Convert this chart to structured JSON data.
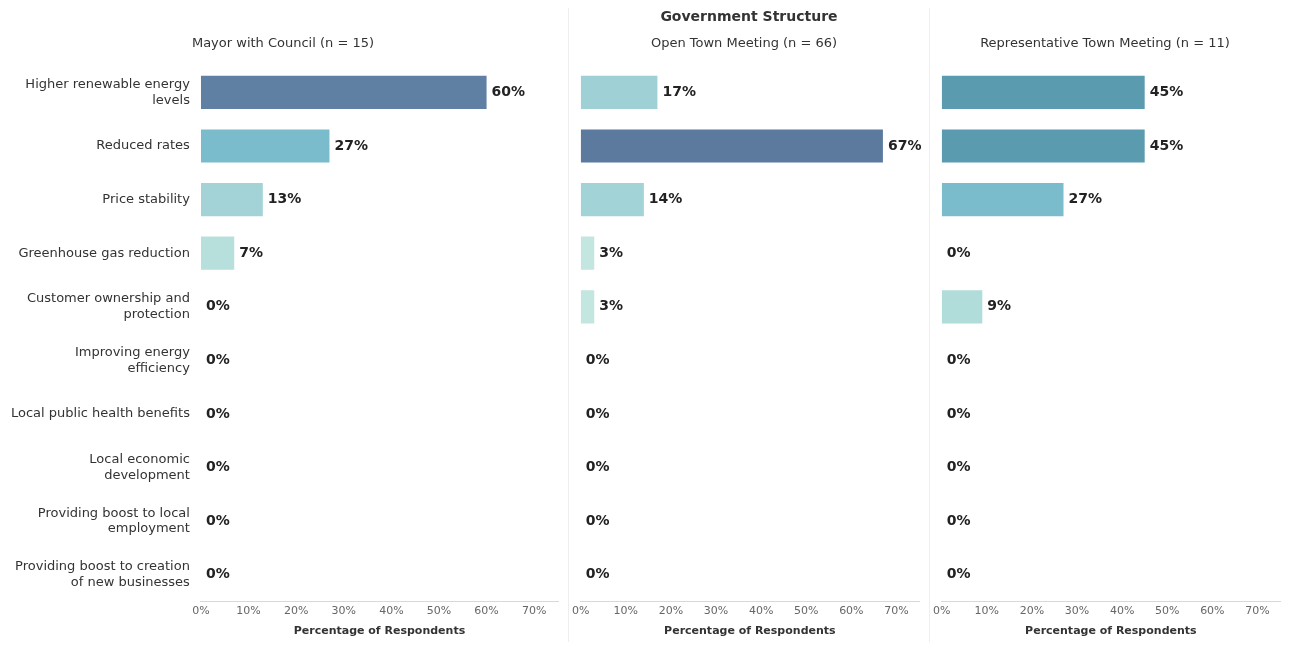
{
  "chart_data": [
    {
      "type": "bar",
      "orientation": "horizontal",
      "subtitle": "Mayor with Council (n = 15)",
      "xlabel": "Percentage of Respondents",
      "categories": [
        "Higher renewable energy levels",
        "Reduced rates",
        "Price stability",
        "Greenhouse gas reduction",
        "Customer ownership and protection",
        "Improving energy efficiency",
        "Local public health benefits",
        "Local economic development",
        "Providing boost to local employment",
        "Providing boost to creation of new businesses"
      ],
      "values": [
        60,
        27,
        13,
        7,
        0,
        0,
        0,
        0,
        0,
        0
      ],
      "value_labels": [
        "60%",
        "27%",
        "13%",
        "7%",
        "0%",
        "0%",
        "0%",
        "0%",
        "0%",
        "0%"
      ],
      "colors": [
        "#5f7fa3",
        "#7bbccc",
        "#a3d3d6",
        "#b7e0dc",
        "#c6e8e2",
        "#c6e8e2",
        "#c6e8e2",
        "#c6e8e2",
        "#c6e8e2",
        "#c6e8e2"
      ],
      "xlim": [
        0,
        75
      ],
      "xticks": [
        {
          "value": 0,
          "label": "0%"
        },
        {
          "value": 10,
          "label": "10%"
        },
        {
          "value": 20,
          "label": "20%"
        },
        {
          "value": 30,
          "label": "30%"
        },
        {
          "value": 40,
          "label": "40%"
        },
        {
          "value": 50,
          "label": "50%"
        },
        {
          "value": 60,
          "label": "60%"
        },
        {
          "value": 70,
          "label": "70%"
        }
      ],
      "grid": false
    },
    {
      "type": "bar",
      "orientation": "horizontal",
      "title": "Government Structure",
      "subtitle": "Open Town Meeting (n = 66)",
      "xlabel": "Percentage of Respondents",
      "tick_labels": "x",
      "categories": [
        null,
        null,
        null,
        null,
        null,
        null,
        null,
        null,
        null,
        null
      ],
      "values": [
        17,
        67,
        14,
        3,
        3,
        0,
        0,
        0,
        0,
        0
      ],
      "value_labels": [
        "17%",
        "67%",
        "14%",
        "3%",
        "3%",
        "0%",
        "0%",
        "0%",
        "0%",
        "0%"
      ],
      "colors": [
        "#9fd0d6",
        "#5b7a9e",
        "#a2d3d6",
        "#c3e6e0",
        "#c3e6e0",
        "#c6e8e2",
        "#c6e8e2",
        "#c6e8e2",
        "#c6e8e2",
        "#c6e8e2"
      ],
      "xlim": [
        0,
        75
      ],
      "xticks": [
        {
          "value": 0,
          "label": "0%"
        },
        {
          "value": 10,
          "label": "10%"
        },
        {
          "value": 20,
          "label": "20%"
        },
        {
          "value": 30,
          "label": "30%"
        },
        {
          "value": 40,
          "label": "40%"
        },
        {
          "value": 50,
          "label": "50%"
        },
        {
          "value": 60,
          "label": "60%"
        },
        {
          "value": 70,
          "label": "70%"
        }
      ],
      "grid": false
    },
    {
      "type": "bar",
      "orientation": "horizontal",
      "subtitle": "Representative Town Meeting (n = 11)",
      "xlabel": "Percentage of Respondents",
      "tick_labels": "x",
      "categories": [
        null,
        null,
        null,
        null,
        null,
        null,
        null,
        null,
        null,
        null
      ],
      "values": [
        45,
        45,
        27,
        0,
        9,
        0,
        0,
        0,
        0,
        0
      ],
      "value_labels": [
        "45%",
        "45%",
        "27%",
        "0%",
        "9%",
        "0%",
        "0%",
        "0%",
        "0%",
        "0%"
      ],
      "colors": [
        "#5b9bb0",
        "#5b9bb0",
        "#7bbccc",
        "#c6e8e2",
        "#b0dcd9",
        "#c6e8e2",
        "#c6e8e2",
        "#c6e8e2",
        "#c6e8e2",
        "#c6e8e2"
      ],
      "xlim": [
        0,
        75
      ],
      "xticks": [
        {
          "value": 0,
          "label": "0%"
        },
        {
          "value": 10,
          "label": "10%"
        },
        {
          "value": 20,
          "label": "20%"
        },
        {
          "value": 30,
          "label": "30%"
        },
        {
          "value": 40,
          "label": "40%"
        },
        {
          "value": 50,
          "label": "50%"
        },
        {
          "value": 60,
          "label": "60%"
        },
        {
          "value": 70,
          "label": "70%"
        }
      ],
      "grid": false
    }
  ]
}
